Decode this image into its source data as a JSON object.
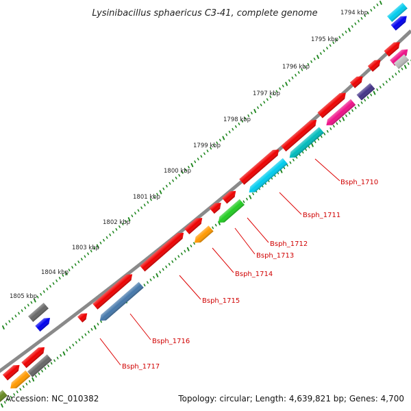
{
  "title": "Lysinibacillus sphaericus C3-41, complete genome",
  "accession": "Accession: NC_010382",
  "summary": "Topology: circular; Length: 4,639,821 bp; Genes: 4,700",
  "ruler_labels": [
    "1794 kbp",
    "1795 kbp",
    "1796 kbp",
    "1797 kbp",
    "1798 kbp",
    "1799 kbp",
    "1800 kbp",
    "1801 kbp",
    "1802 kbp",
    "1803 kbp",
    "1804 kbp",
    "1805 kbp"
  ],
  "gene_labels": [
    "Bsph_1710",
    "Bsph_1711",
    "Bsph_1712",
    "Bsph_1713",
    "Bsph_1714",
    "Bsph_1715",
    "Bsph_1716",
    "Bsph_1717"
  ],
  "colors": {
    "red": "#ee0000",
    "cyan": "#00ccee",
    "teal": "#00bbbb",
    "magenta": "#ee1188",
    "navy": "#443388",
    "green": "#22cc22",
    "orange": "#ff9900",
    "steelblue": "#4477aa",
    "gray": "#666666",
    "blue": "#0000ee",
    "lightgray": "#bbbbbb",
    "backbone": "#888888",
    "tick": "#228822",
    "label": "#dd0000"
  }
}
